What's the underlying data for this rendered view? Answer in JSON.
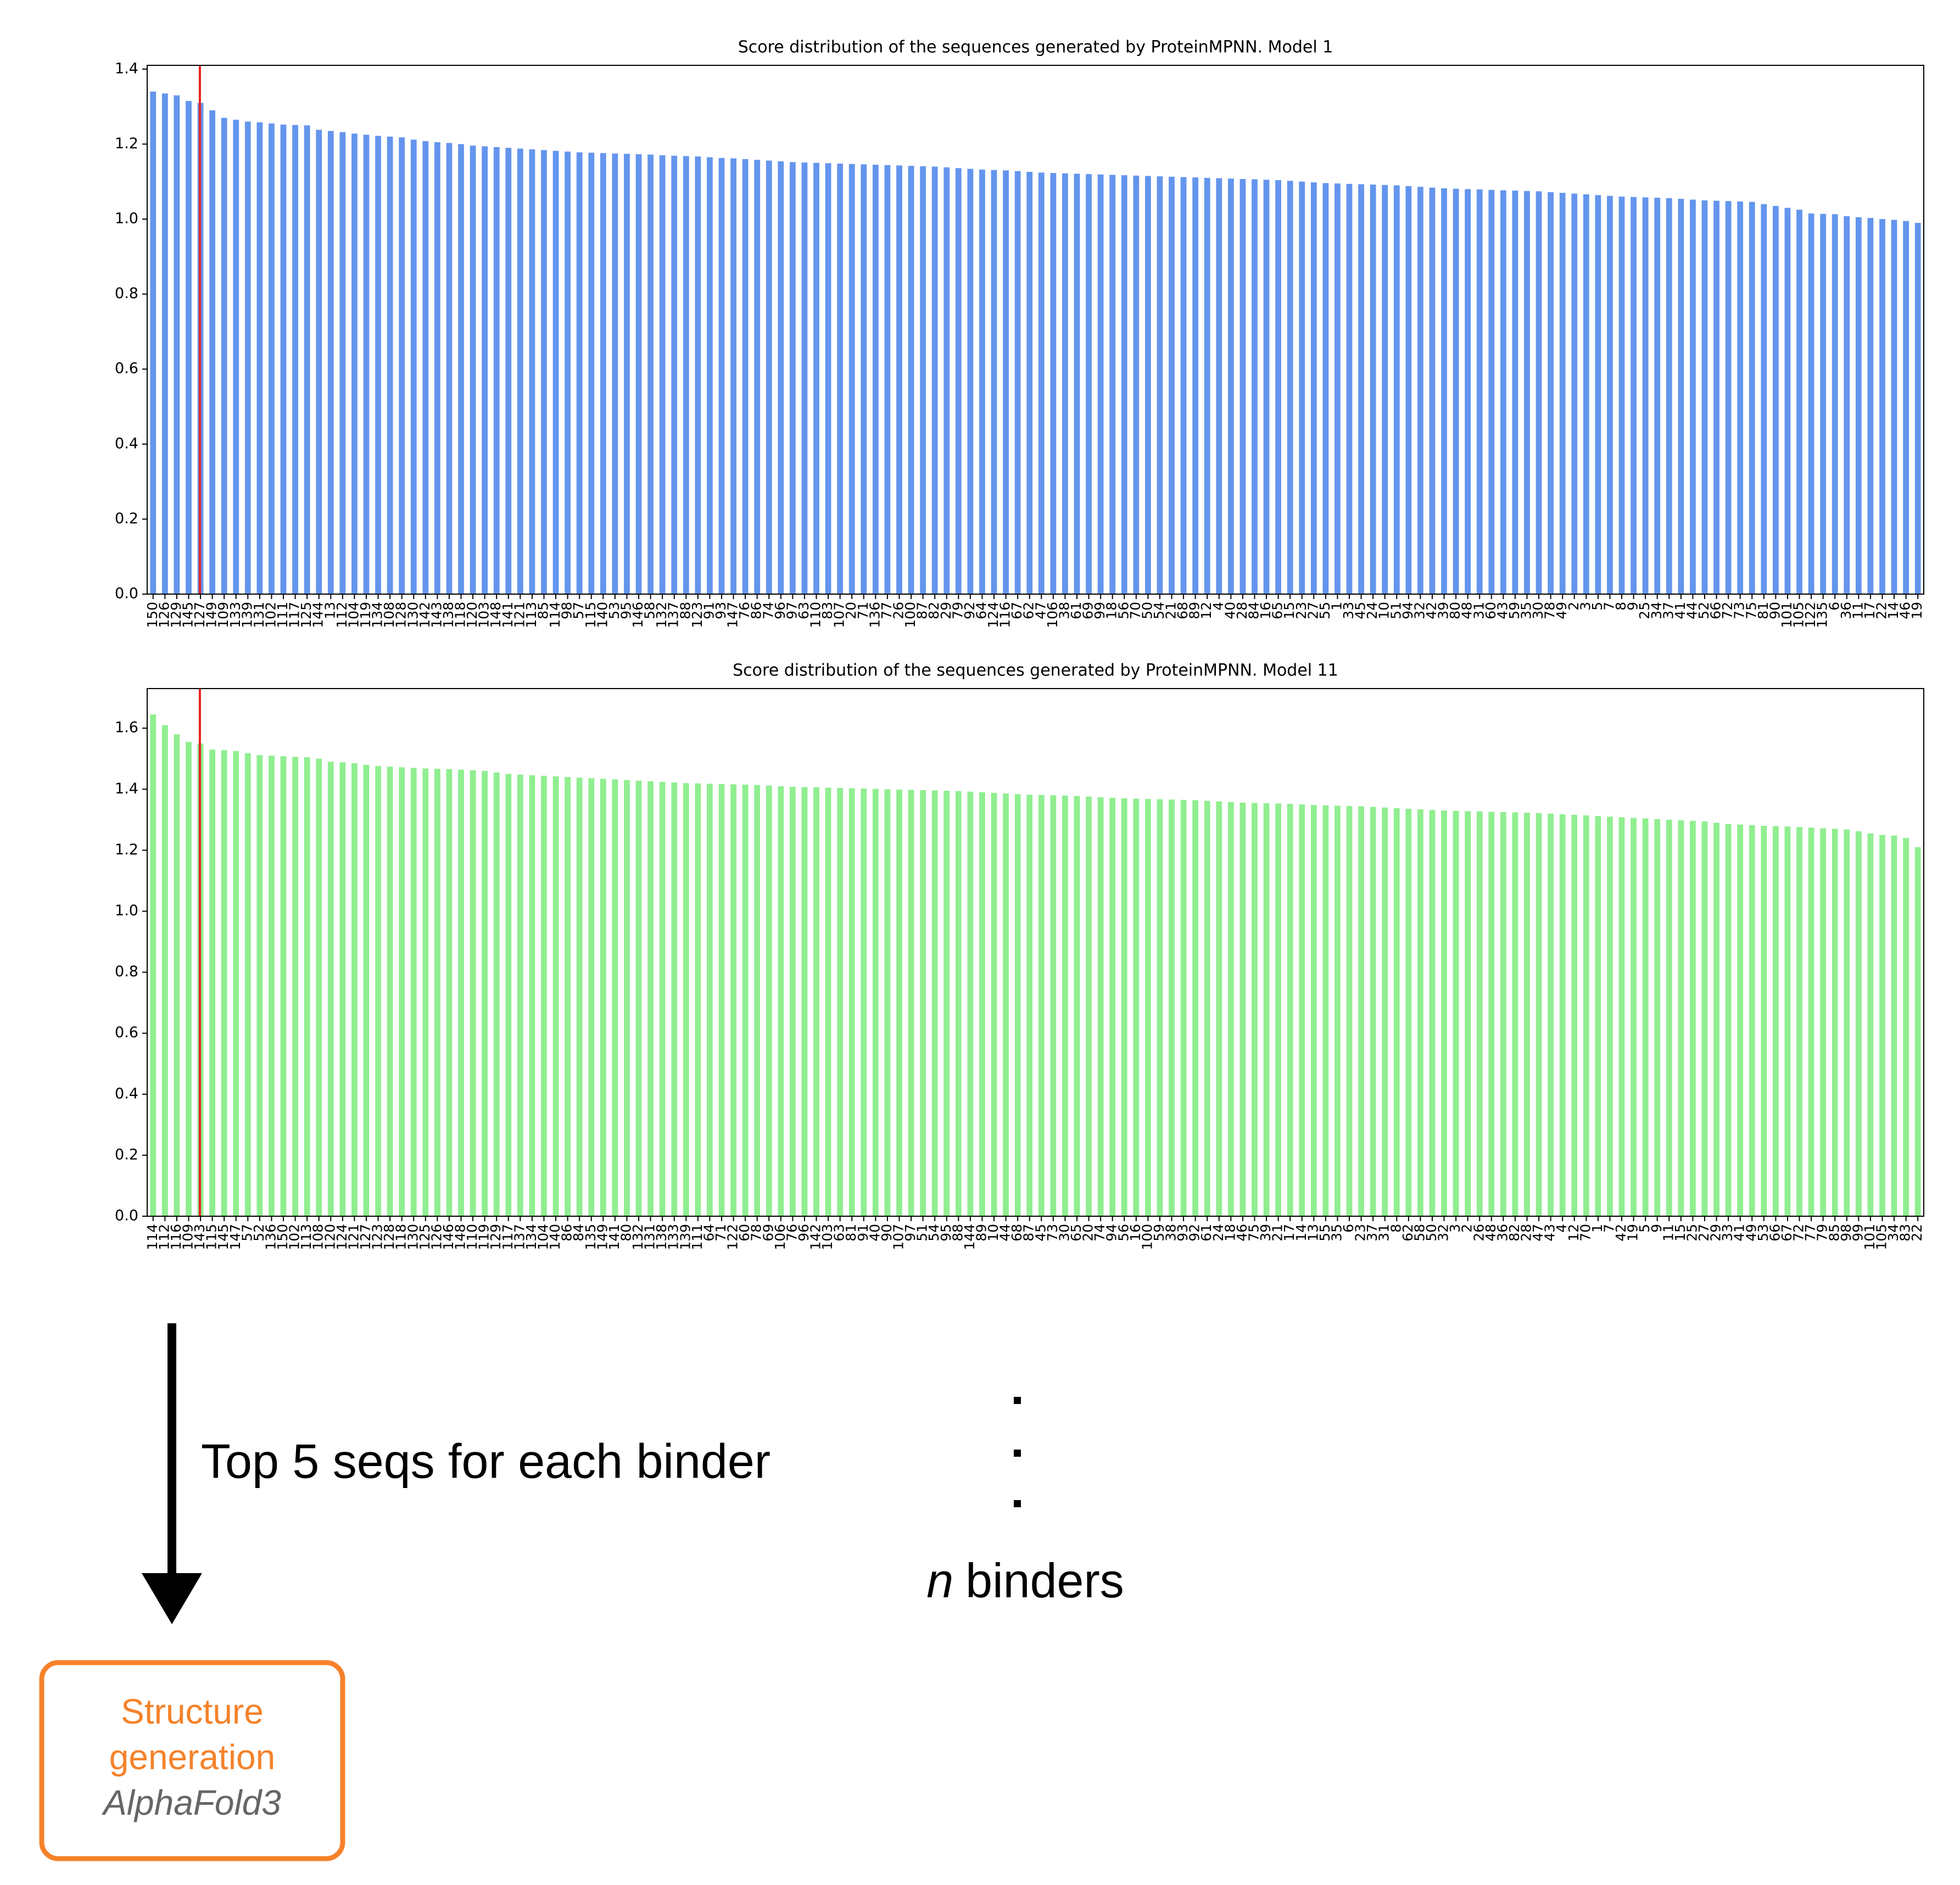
{
  "chart_data": [
    {
      "type": "bar",
      "title": "Score distribution of the sequences generated by ProteinMPNN. Model 1",
      "color": "#6495ed",
      "ylim": [
        0,
        1.41
      ],
      "yticks": [
        {
          "value": 0,
          "label": "0.0"
        },
        0.2,
        0.4,
        0.6,
        0.8,
        {
          "value": 1,
          "label": "1.0"
        },
        1.2,
        1.4
      ],
      "categories": [
        "150",
        "126",
        "129",
        "145",
        "127",
        "149",
        "109",
        "133",
        "139",
        "131",
        "102",
        "111",
        "117",
        "125",
        "144",
        "13",
        "112",
        "104",
        "119",
        "134",
        "108",
        "128",
        "130",
        "142",
        "143",
        "138",
        "118",
        "120",
        "103",
        "148",
        "141",
        "121",
        "113",
        "85",
        "114",
        "98",
        "57",
        "115",
        "140",
        "53",
        "95",
        "146",
        "58",
        "132",
        "137",
        "88",
        "123",
        "91",
        "93",
        "147",
        "76",
        "86",
        "74",
        "96",
        "97",
        "63",
        "110",
        "83",
        "107",
        "20",
        "71",
        "136",
        "77",
        "26",
        "100",
        "87",
        "82",
        "29",
        "79",
        "92",
        "64",
        "124",
        "116",
        "67",
        "62",
        "47",
        "106",
        "38",
        "61",
        "69",
        "99",
        "18",
        "56",
        "70",
        "50",
        "54",
        "21",
        "68",
        "89",
        "12",
        "4",
        "40",
        "28",
        "84",
        "16",
        "65",
        "15",
        "23",
        "27",
        "55",
        "1",
        "33",
        "45",
        "24",
        "10",
        "51",
        "94",
        "32",
        "42",
        "39",
        "80",
        "48",
        "31",
        "60",
        "43",
        "59",
        "35",
        "30",
        "78",
        "49",
        "2",
        "3",
        "5",
        "7",
        "8",
        "9",
        "25",
        "34",
        "37",
        "41",
        "44",
        "52",
        "66",
        "72",
        "73",
        "75",
        "81",
        "90",
        "101",
        "105",
        "122",
        "135",
        "6",
        "36",
        "11",
        "17",
        "22",
        "14",
        "46",
        "19"
      ],
      "values": [
        1.34,
        1.335,
        1.33,
        1.315,
        1.31,
        1.29,
        1.27,
        1.265,
        1.26,
        1.258,
        1.255,
        1.252,
        1.251,
        1.25,
        1.238,
        1.235,
        1.232,
        1.228,
        1.225,
        1.222,
        1.22,
        1.218,
        1.212,
        1.208,
        1.205,
        1.203,
        1.2,
        1.196,
        1.194,
        1.192,
        1.19,
        1.188,
        1.186,
        1.184,
        1.182,
        1.18,
        1.178,
        1.177,
        1.176,
        1.175,
        1.174,
        1.173,
        1.172,
        1.17,
        1.169,
        1.168,
        1.167,
        1.165,
        1.163,
        1.162,
        1.16,
        1.158,
        1.156,
        1.154,
        1.152,
        1.151,
        1.15,
        1.149,
        1.148,
        1.147,
        1.146,
        1.145,
        1.144,
        1.143,
        1.142,
        1.141,
        1.14,
        1.138,
        1.136,
        1.134,
        1.132,
        1.131,
        1.13,
        1.128,
        1.126,
        1.124,
        1.123,
        1.122,
        1.121,
        1.12,
        1.119,
        1.118,
        1.117,
        1.116,
        1.115,
        1.114,
        1.113,
        1.112,
        1.111,
        1.11,
        1.109,
        1.108,
        1.107,
        1.106,
        1.105,
        1.104,
        1.102,
        1.1,
        1.098,
        1.096,
        1.095,
        1.094,
        1.093,
        1.092,
        1.091,
        1.09,
        1.088,
        1.086,
        1.084,
        1.082,
        1.081,
        1.08,
        1.079,
        1.078,
        1.077,
        1.076,
        1.075,
        1.074,
        1.072,
        1.07,
        1.068,
        1.066,
        1.064,
        1.062,
        1.06,
        1.059,
        1.058,
        1.057,
        1.056,
        1.054,
        1.052,
        1.05,
        1.049,
        1.048,
        1.047,
        1.046,
        1.04,
        1.035,
        1.03,
        1.025,
        1.015,
        1.014,
        1.013,
        1.008,
        1.005,
        1.003,
        1.0,
        0.998,
        0.995,
        0.99
      ]
    },
    {
      "type": "bar",
      "title": "Score distribution of the sequences generated by ProteinMPNN. Model 11",
      "color": "#90ee90",
      "ylim": [
        0,
        1.73
      ],
      "yticks": [
        {
          "value": 0,
          "label": "0.0"
        },
        0.2,
        0.4,
        0.6,
        0.8,
        {
          "value": 1,
          "label": "1.0"
        },
        1.2,
        1.4,
        1.6
      ],
      "categories": [
        "114",
        "112",
        "116",
        "109",
        "143",
        "115",
        "145",
        "147",
        "57",
        "52",
        "136",
        "150",
        "102",
        "113",
        "108",
        "120",
        "124",
        "121",
        "127",
        "123",
        "128",
        "118",
        "130",
        "125",
        "126",
        "146",
        "148",
        "110",
        "119",
        "129",
        "117",
        "137",
        "134",
        "104",
        "140",
        "86",
        "84",
        "135",
        "149",
        "141",
        "80",
        "132",
        "131",
        "138",
        "133",
        "139",
        "111",
        "64",
        "71",
        "122",
        "60",
        "78",
        "69",
        "106",
        "76",
        "96",
        "142",
        "103",
        "63",
        "81",
        "91",
        "40",
        "90",
        "107",
        "97",
        "51",
        "54",
        "95",
        "88",
        "144",
        "89",
        "10",
        "44",
        "68",
        "87",
        "45",
        "73",
        "30",
        "65",
        "20",
        "74",
        "94",
        "56",
        "16",
        "100",
        "59",
        "38",
        "93",
        "92",
        "61",
        "24",
        "18",
        "46",
        "75",
        "39",
        "21",
        "17",
        "14",
        "13",
        "55",
        "35",
        "6",
        "23",
        "37",
        "31",
        "8",
        "62",
        "58",
        "50",
        "32",
        "3",
        "2",
        "26",
        "48",
        "36",
        "82",
        "28",
        "47",
        "43",
        "4",
        "12",
        "70",
        "1",
        "7",
        "42",
        "19",
        "5",
        "9",
        "11",
        "15",
        "25",
        "27",
        "29",
        "33",
        "41",
        "49",
        "53",
        "66",
        "67",
        "72",
        "77",
        "79",
        "85",
        "98",
        "99",
        "101",
        "105",
        "34",
        "83",
        "22"
      ],
      "values": [
        1.645,
        1.61,
        1.58,
        1.555,
        1.55,
        1.53,
        1.528,
        1.525,
        1.518,
        1.512,
        1.51,
        1.508,
        1.506,
        1.505,
        1.5,
        1.49,
        1.488,
        1.485,
        1.48,
        1.476,
        1.474,
        1.472,
        1.47,
        1.468,
        1.467,
        1.466,
        1.464,
        1.462,
        1.46,
        1.455,
        1.45,
        1.448,
        1.446,
        1.444,
        1.442,
        1.44,
        1.438,
        1.436,
        1.434,
        1.432,
        1.43,
        1.428,
        1.426,
        1.424,
        1.422,
        1.42,
        1.419,
        1.418,
        1.417,
        1.416,
        1.415,
        1.414,
        1.412,
        1.41,
        1.408,
        1.407,
        1.406,
        1.405,
        1.404,
        1.403,
        1.402,
        1.401,
        1.4,
        1.399,
        1.398,
        1.397,
        1.396,
        1.395,
        1.394,
        1.392,
        1.39,
        1.388,
        1.386,
        1.384,
        1.382,
        1.381,
        1.38,
        1.379,
        1.378,
        1.376,
        1.374,
        1.372,
        1.37,
        1.369,
        1.368,
        1.367,
        1.366,
        1.365,
        1.364,
        1.362,
        1.36,
        1.358,
        1.356,
        1.355,
        1.354,
        1.353,
        1.352,
        1.35,
        1.348,
        1.347,
        1.346,
        1.345,
        1.344,
        1.342,
        1.34,
        1.338,
        1.336,
        1.334,
        1.332,
        1.33,
        1.329,
        1.328,
        1.327,
        1.326,
        1.325,
        1.324,
        1.323,
        1.322,
        1.32,
        1.318,
        1.316,
        1.314,
        1.312,
        1.31,
        1.308,
        1.306,
        1.304,
        1.302,
        1.3,
        1.298,
        1.296,
        1.294,
        1.29,
        1.286,
        1.284,
        1.282,
        1.28,
        1.279,
        1.278,
        1.276,
        1.274,
        1.272,
        1.27,
        1.268,
        1.262,
        1.255,
        1.25,
        1.248,
        1.24,
        1.21
      ]
    }
  ],
  "arrow_label": "Top 5 seqs for each binder",
  "binder_count": {
    "variable": "n",
    "text": "binders"
  },
  "box": {
    "lines": [
      "Structure",
      "generation"
    ],
    "tool": "AlphaFold3"
  }
}
